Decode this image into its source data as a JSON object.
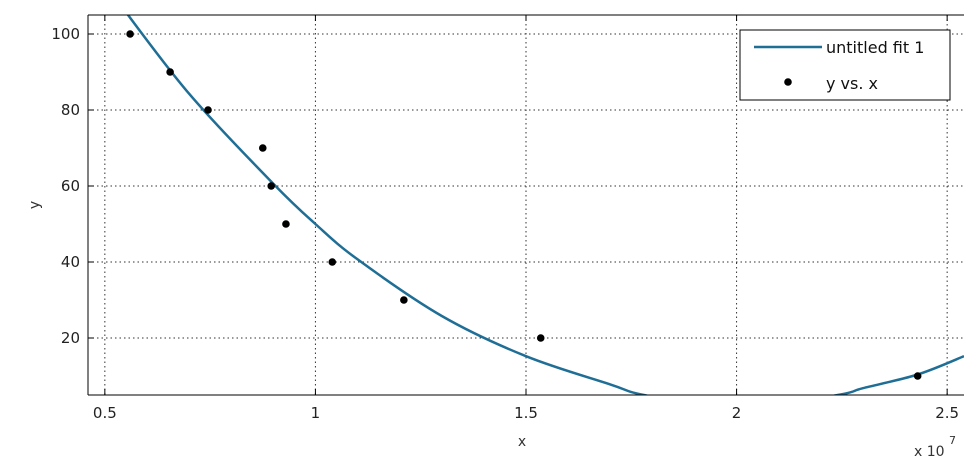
{
  "chart_data": {
    "type": "scatter",
    "xlabel": "x",
    "ylabel": "y",
    "x_multiplier_label": "x 10",
    "x_multiplier_exponent": "7",
    "xlim": [
      0.46,
      2.54
    ],
    "ylim": [
      5,
      105
    ],
    "xticks": [
      0.5,
      1,
      1.5,
      2,
      2.5
    ],
    "xtick_labels": [
      "0.5",
      "1",
      "1.5",
      "2",
      "2.5"
    ],
    "yticks": [
      20,
      40,
      60,
      80,
      100
    ],
    "ytick_labels": [
      "20",
      "40",
      "60",
      "80",
      "100"
    ],
    "grid": true,
    "grid_style": "dotted",
    "legend_position": "top-right",
    "legend": {
      "fit_label": "untitled fit 1",
      "points_label": "y vs. x"
    },
    "series": [
      {
        "name": "y vs. x",
        "kind": "points",
        "color": "#000000",
        "x": [
          0.56,
          0.655,
          0.745,
          0.875,
          0.895,
          0.93,
          1.04,
          1.21,
          1.535,
          2.43
        ],
        "y": [
          100,
          90,
          80,
          70,
          60,
          50,
          40,
          30,
          20,
          10
        ]
      },
      {
        "name": "untitled fit 1",
        "kind": "line",
        "color": "#1f6e96",
        "x": [
          0.53,
          0.7,
          0.9,
          1.0,
          1.1,
          1.3,
          1.5,
          1.7,
          1.78,
          2.0,
          2.24,
          2.3,
          2.43,
          2.54
        ],
        "y": [
          108.7,
          84.3,
          60.6,
          50.0,
          40.7,
          25.8,
          15.2,
          7.8,
          5.0,
          0.9,
          5.0,
          6.8,
          10.4,
          15.2
        ]
      }
    ]
  }
}
